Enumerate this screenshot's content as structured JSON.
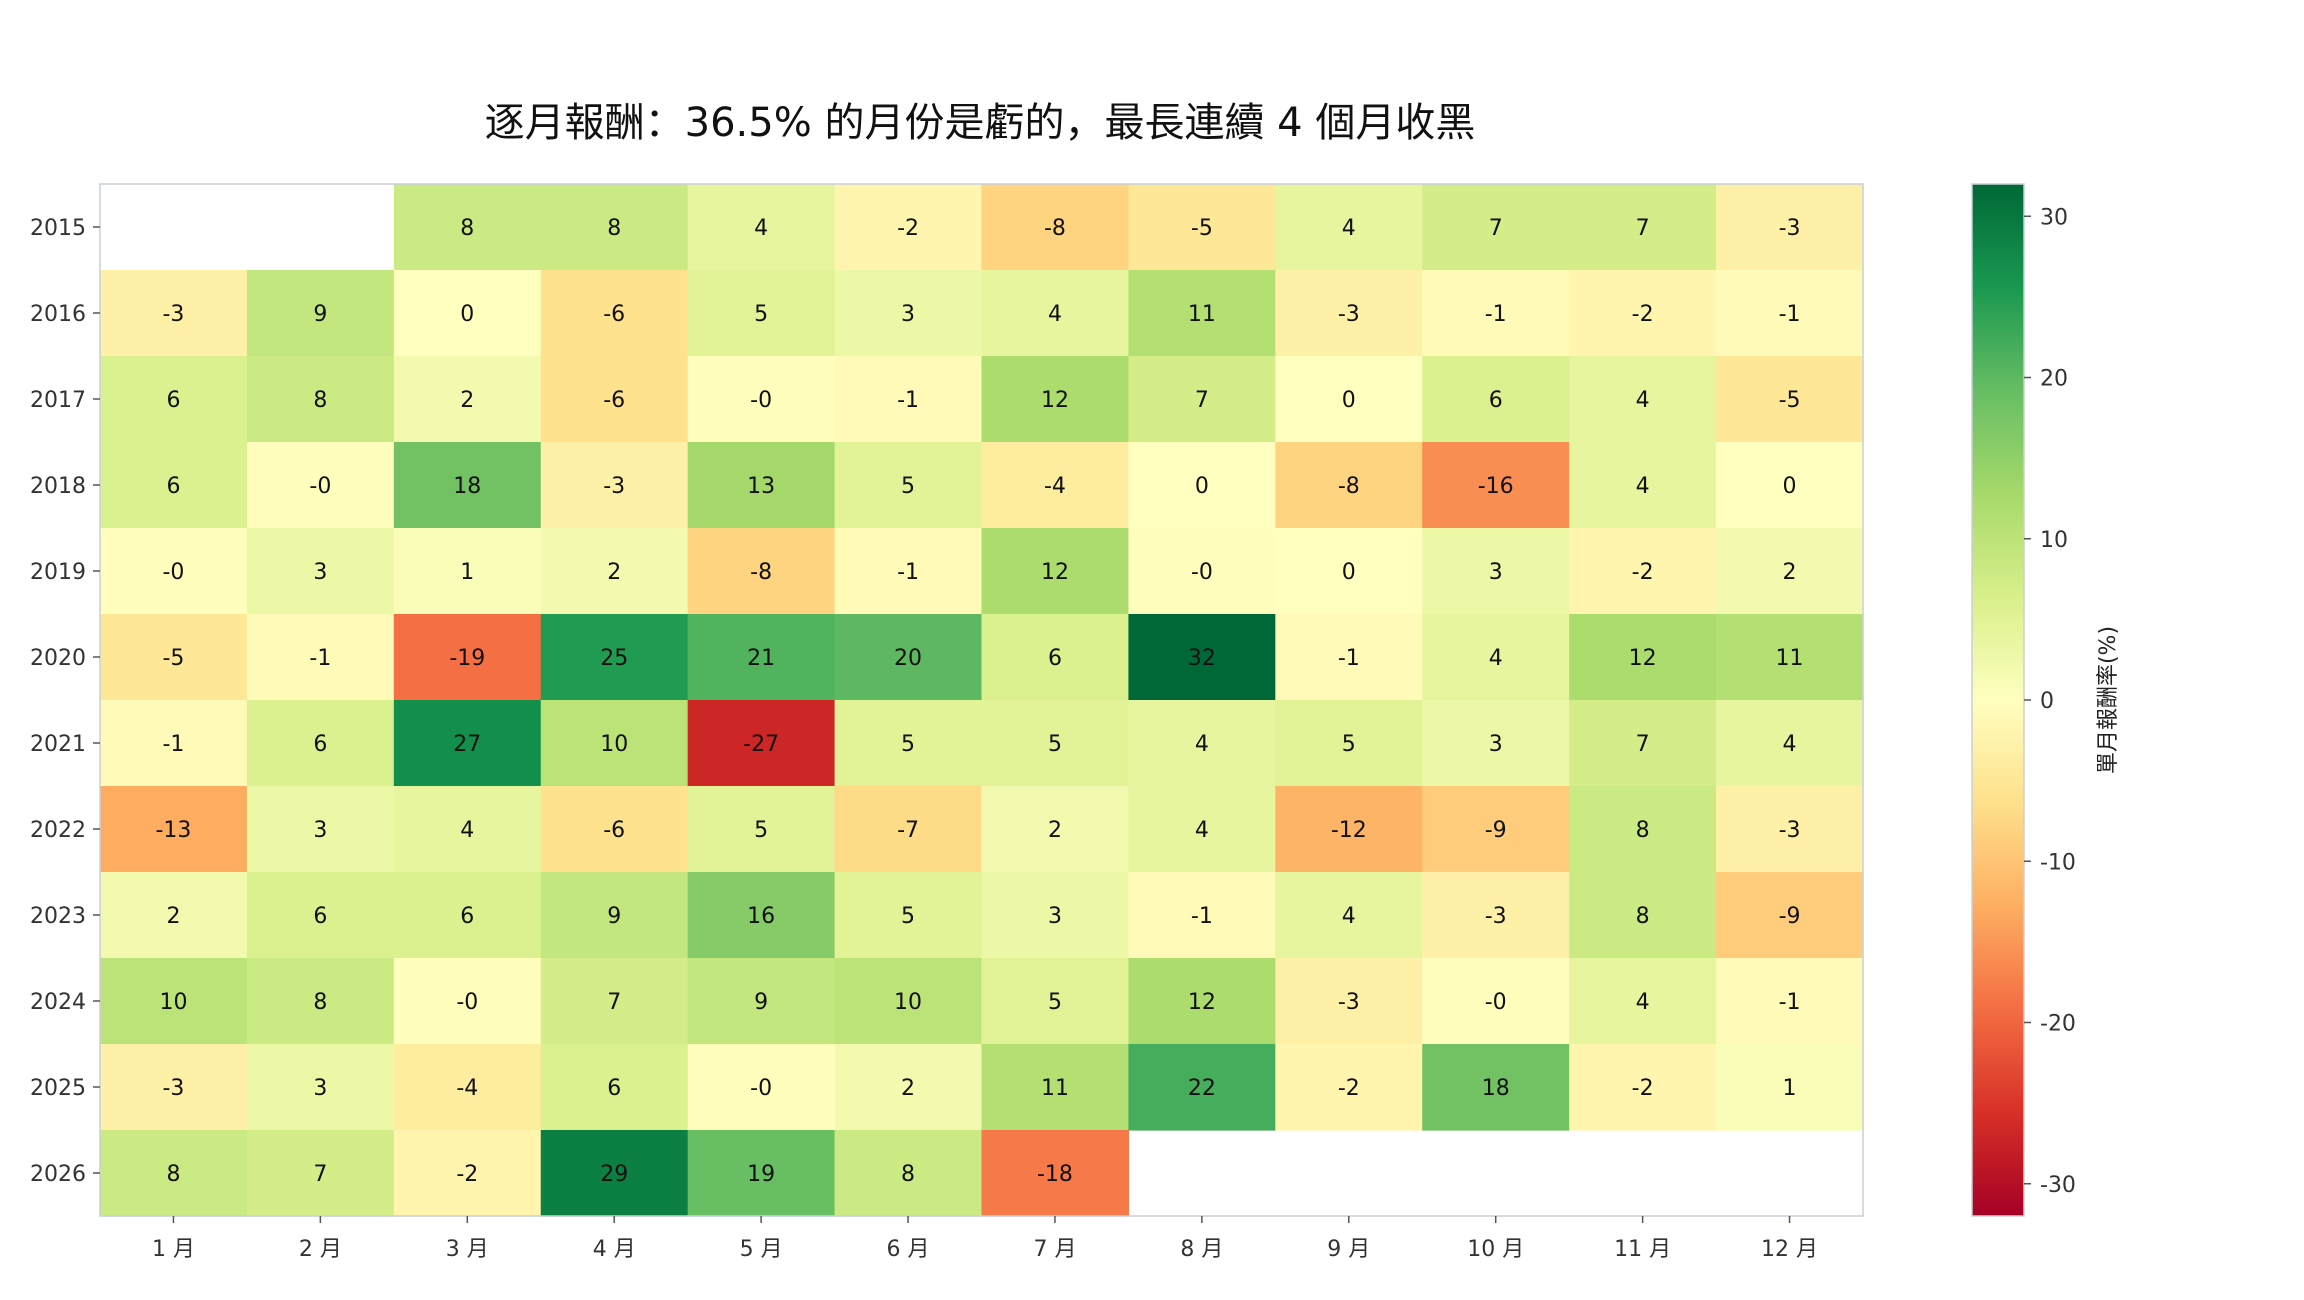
{
  "chart_data": {
    "type": "heatmap",
    "title": "逐月報酬：36.5% 的月份是虧的，最長連續 4 個月收黑",
    "x_categories": [
      "1 月",
      "2 月",
      "3 月",
      "4 月",
      "5 月",
      "6 月",
      "7 月",
      "8 月",
      "9 月",
      "10 月",
      "11 月",
      "12 月"
    ],
    "y_categories": [
      "2015",
      "2016",
      "2017",
      "2018",
      "2019",
      "2020",
      "2021",
      "2022",
      "2023",
      "2024",
      "2025",
      "2026"
    ],
    "values": [
      [
        null,
        null,
        8,
        8,
        4,
        -2,
        -8,
        -5,
        4,
        7,
        7,
        -3
      ],
      [
        -3,
        9,
        0,
        -6,
        5,
        3,
        4,
        11,
        -3,
        -1,
        -2,
        -1
      ],
      [
        6,
        8,
        2,
        -6,
        -0.2,
        -1,
        12,
        7,
        0,
        6,
        4,
        -5
      ],
      [
        6,
        -0.2,
        18,
        -3,
        13,
        5,
        -4,
        0,
        -8,
        -16,
        4,
        0
      ],
      [
        -0.2,
        3,
        1,
        2,
        -8,
        -1,
        12,
        -0.2,
        0,
        3,
        -2,
        2
      ],
      [
        -5,
        -1,
        -19,
        25,
        21,
        20,
        6,
        32,
        -1,
        4,
        12,
        11
      ],
      [
        -1,
        6,
        27,
        10,
        -27,
        5,
        5,
        4,
        5,
        3,
        7,
        4
      ],
      [
        -13,
        3,
        4,
        -6,
        5,
        -7,
        2,
        4,
        -12,
        -9,
        8,
        -3
      ],
      [
        2,
        6,
        6,
        9,
        16,
        5,
        3,
        -1,
        4,
        -3,
        8,
        -9
      ],
      [
        10,
        8,
        -0.2,
        7,
        9,
        10,
        5,
        12,
        -3,
        -0.2,
        4,
        -1
      ],
      [
        -3,
        3,
        -4,
        6,
        -0.2,
        2,
        11,
        22,
        -2,
        18,
        -2,
        1
      ],
      [
        8,
        7,
        -2,
        29,
        19,
        8,
        -18,
        null,
        null,
        null,
        null,
        null
      ]
    ],
    "colorbar": {
      "label": "單月報酬率(%)",
      "vmin": -32,
      "vmax": 32,
      "ticks": [
        30,
        20,
        10,
        0,
        -10,
        -20,
        -30
      ],
      "colormap": "RdYlGn"
    }
  }
}
